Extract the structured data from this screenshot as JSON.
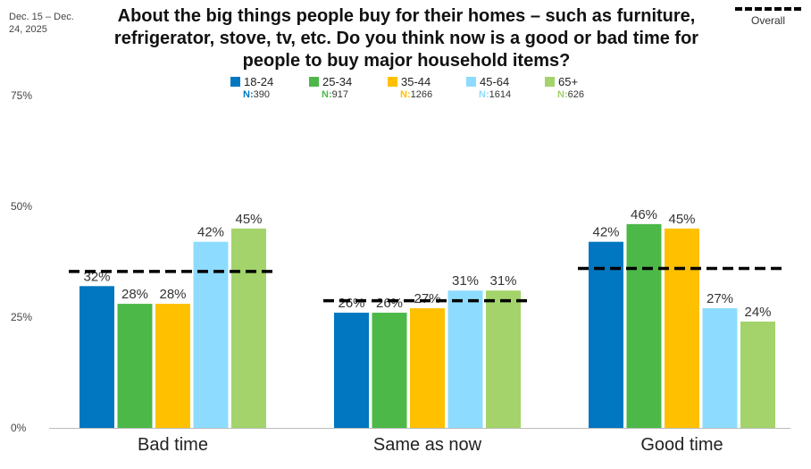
{
  "date_range": "Dec. 15 – Dec. 24, 2025",
  "title": "About the big things people buy for their homes – such as furniture, refrigerator, stove, tv, etc. Do you think now is a good or bad time for people to buy major household items?",
  "overall_label": "Overall",
  "colors": [
    "#0077c0",
    "#4cb848",
    "#ffc000",
    "#8ddcff",
    "#a3d36a"
  ],
  "legend": [
    {
      "label": "18-24",
      "n": "390"
    },
    {
      "label": "25-34",
      "n": "917"
    },
    {
      "label": "35-44",
      "n": "1266"
    },
    {
      "label": "45-64",
      "n": "1614"
    },
    {
      "label": "65+",
      "n": "626"
    }
  ],
  "n_prefix": "N:",
  "chart_data": {
    "type": "bar",
    "categories": [
      "Bad time",
      "Same as now",
      "Good time"
    ],
    "series": [
      {
        "name": "18-24",
        "values": [
          32,
          26,
          42
        ]
      },
      {
        "name": "25-34",
        "values": [
          28,
          26,
          46
        ]
      },
      {
        "name": "35-44",
        "values": [
          28,
          27,
          45
        ]
      },
      {
        "name": "45-64",
        "values": [
          42,
          31,
          27
        ]
      },
      {
        "name": "65+",
        "values": [
          45,
          31,
          24
        ]
      }
    ],
    "overall": {
      "name": "Overall",
      "values": [
        35.3,
        28.7,
        36
      ]
    },
    "y_ticks": [
      0,
      25,
      50,
      75
    ],
    "ylim": [
      0,
      75
    ],
    "value_suffix": "%",
    "grid": false,
    "legend_position": "top"
  }
}
